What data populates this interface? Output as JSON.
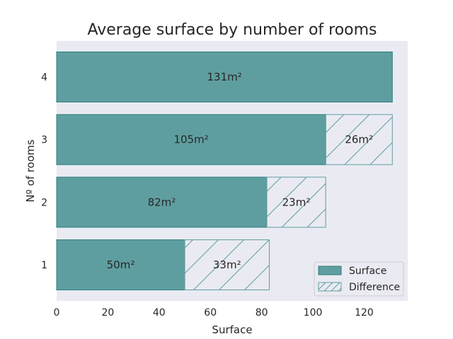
{
  "chart_data": {
    "type": "bar",
    "orientation": "horizontal",
    "stacked": true,
    "title": "Average surface by number of rooms",
    "xlabel": "Surface",
    "ylabel": "Nº of rooms",
    "categories": [
      "1",
      "2",
      "3",
      "4"
    ],
    "xlim": [
      0,
      137
    ],
    "xticks": [
      0,
      20,
      40,
      60,
      80,
      100,
      120
    ],
    "series": [
      {
        "name": "Surface",
        "values": [
          50,
          82,
          105,
          131
        ],
        "labels": [
          "50m²",
          "82m²",
          "105m²",
          "131m²"
        ],
        "fill": "#5f9ea0",
        "edge": "#2a7f7f"
      },
      {
        "name": "Difference",
        "values": [
          33,
          23,
          26,
          0
        ],
        "labels": [
          "33m²",
          "23m²",
          "26m²",
          ""
        ],
        "fill": "none",
        "hatch": "/",
        "edge": "#5f9ea0"
      }
    ],
    "legend": "bottom-right",
    "grid": false,
    "background": "#eaeaf2"
  }
}
